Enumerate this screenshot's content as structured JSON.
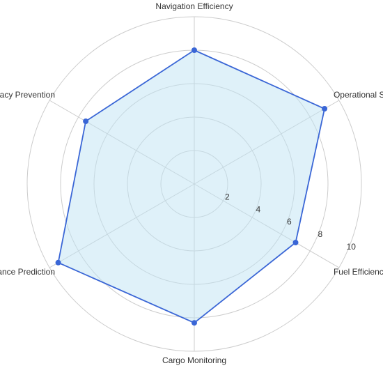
{
  "chart_data": {
    "type": "radar",
    "categories": [
      "Navigation Efficiency",
      "Operational Safety",
      "Fuel Efficiency",
      "Cargo Monitoring",
      "Maintenance Prediction",
      "Piracy Prevention"
    ],
    "values": [
      8,
      9,
      7,
      8.3,
      9.4,
      7.5
    ],
    "color": "#3a66d6",
    "fill_color": "#bfe3f3",
    "rlim": [
      0,
      10
    ],
    "rticks": [
      2,
      4,
      6,
      8,
      10
    ],
    "grid": true
  }
}
